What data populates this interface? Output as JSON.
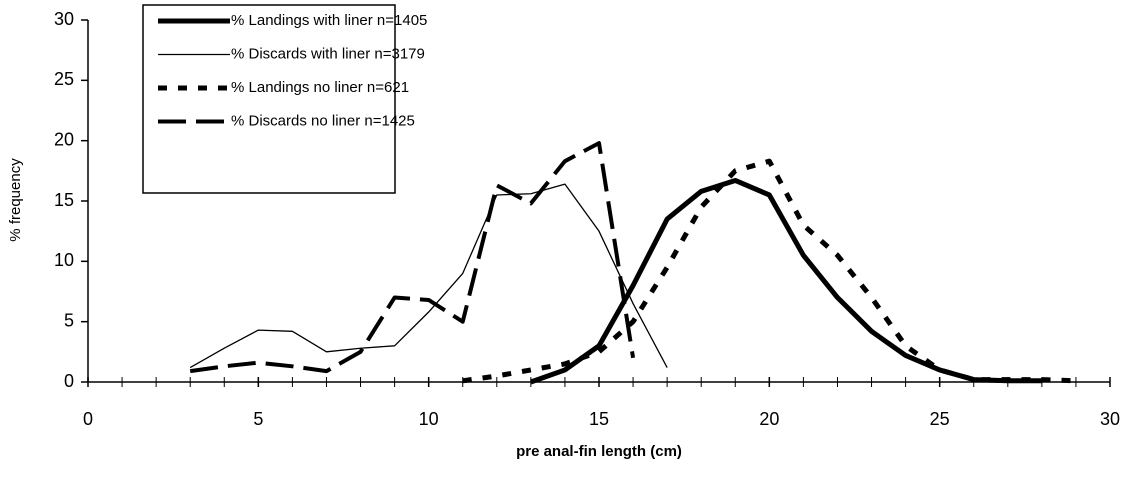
{
  "chart_data": {
    "type": "line",
    "x_label": "pre anal-fin length (cm)",
    "y_label": "% frequency",
    "xlim": [
      0,
      30
    ],
    "xticks": [
      0,
      5,
      10,
      15,
      20,
      25,
      30
    ],
    "ylim": [
      0,
      30
    ],
    "yticks": [
      0,
      5,
      10,
      15,
      20,
      25,
      30
    ],
    "grid": false,
    "legend": "top-left",
    "series": [
      {
        "name": "% Landings with liner n=1405",
        "color": "#000000",
        "line_style": "solid",
        "line_width": 5,
        "x": [
          13,
          14,
          15,
          16,
          17,
          18,
          19,
          20,
          21,
          22,
          23,
          24,
          25,
          26,
          27,
          28
        ],
        "values": [
          0,
          1,
          3,
          8,
          13.5,
          15.8,
          16.7,
          15.5,
          10.5,
          7,
          4.2,
          2.2,
          1,
          0.2,
          0.1,
          0.1
        ]
      },
      {
        "name": "% Discards with liner n=3179",
        "color": "#000000",
        "line_style": "solid",
        "line_width": 1.3,
        "x": [
          3,
          4,
          5,
          6,
          7,
          8,
          9,
          10,
          11,
          12,
          13,
          14,
          15,
          16,
          17
        ],
        "values": [
          1.2,
          2.8,
          4.3,
          4.2,
          2.5,
          2.8,
          3,
          5.8,
          9,
          15.5,
          15.6,
          16.4,
          12.5,
          6.5,
          1.2
        ]
      },
      {
        "name": "% Landings no liner n=621",
        "color": "#000000",
        "line_style": "short-dash",
        "line_width": 5,
        "x": [
          11,
          12,
          13,
          14,
          15,
          16,
          17,
          18,
          19,
          20,
          21,
          22,
          23,
          24,
          25,
          26,
          27,
          28,
          29
        ],
        "values": [
          0.1,
          0.5,
          1,
          1.5,
          2.5,
          5,
          9.5,
          14.5,
          17.5,
          18.3,
          13,
          10.5,
          7,
          3,
          1,
          0.2,
          0.2,
          0.2,
          0.1
        ]
      },
      {
        "name": "% Discards no liner n=1425",
        "color": "#000000",
        "line_style": "long-dash",
        "line_width": 4,
        "x": [
          3,
          4,
          5,
          6,
          7,
          8,
          9,
          10,
          11,
          12,
          13,
          14,
          15,
          16
        ],
        "values": [
          0.9,
          1.3,
          1.6,
          1.3,
          0.9,
          2.5,
          7,
          6.8,
          5,
          16.3,
          14.8,
          18.3,
          19.8,
          2
        ]
      }
    ]
  }
}
